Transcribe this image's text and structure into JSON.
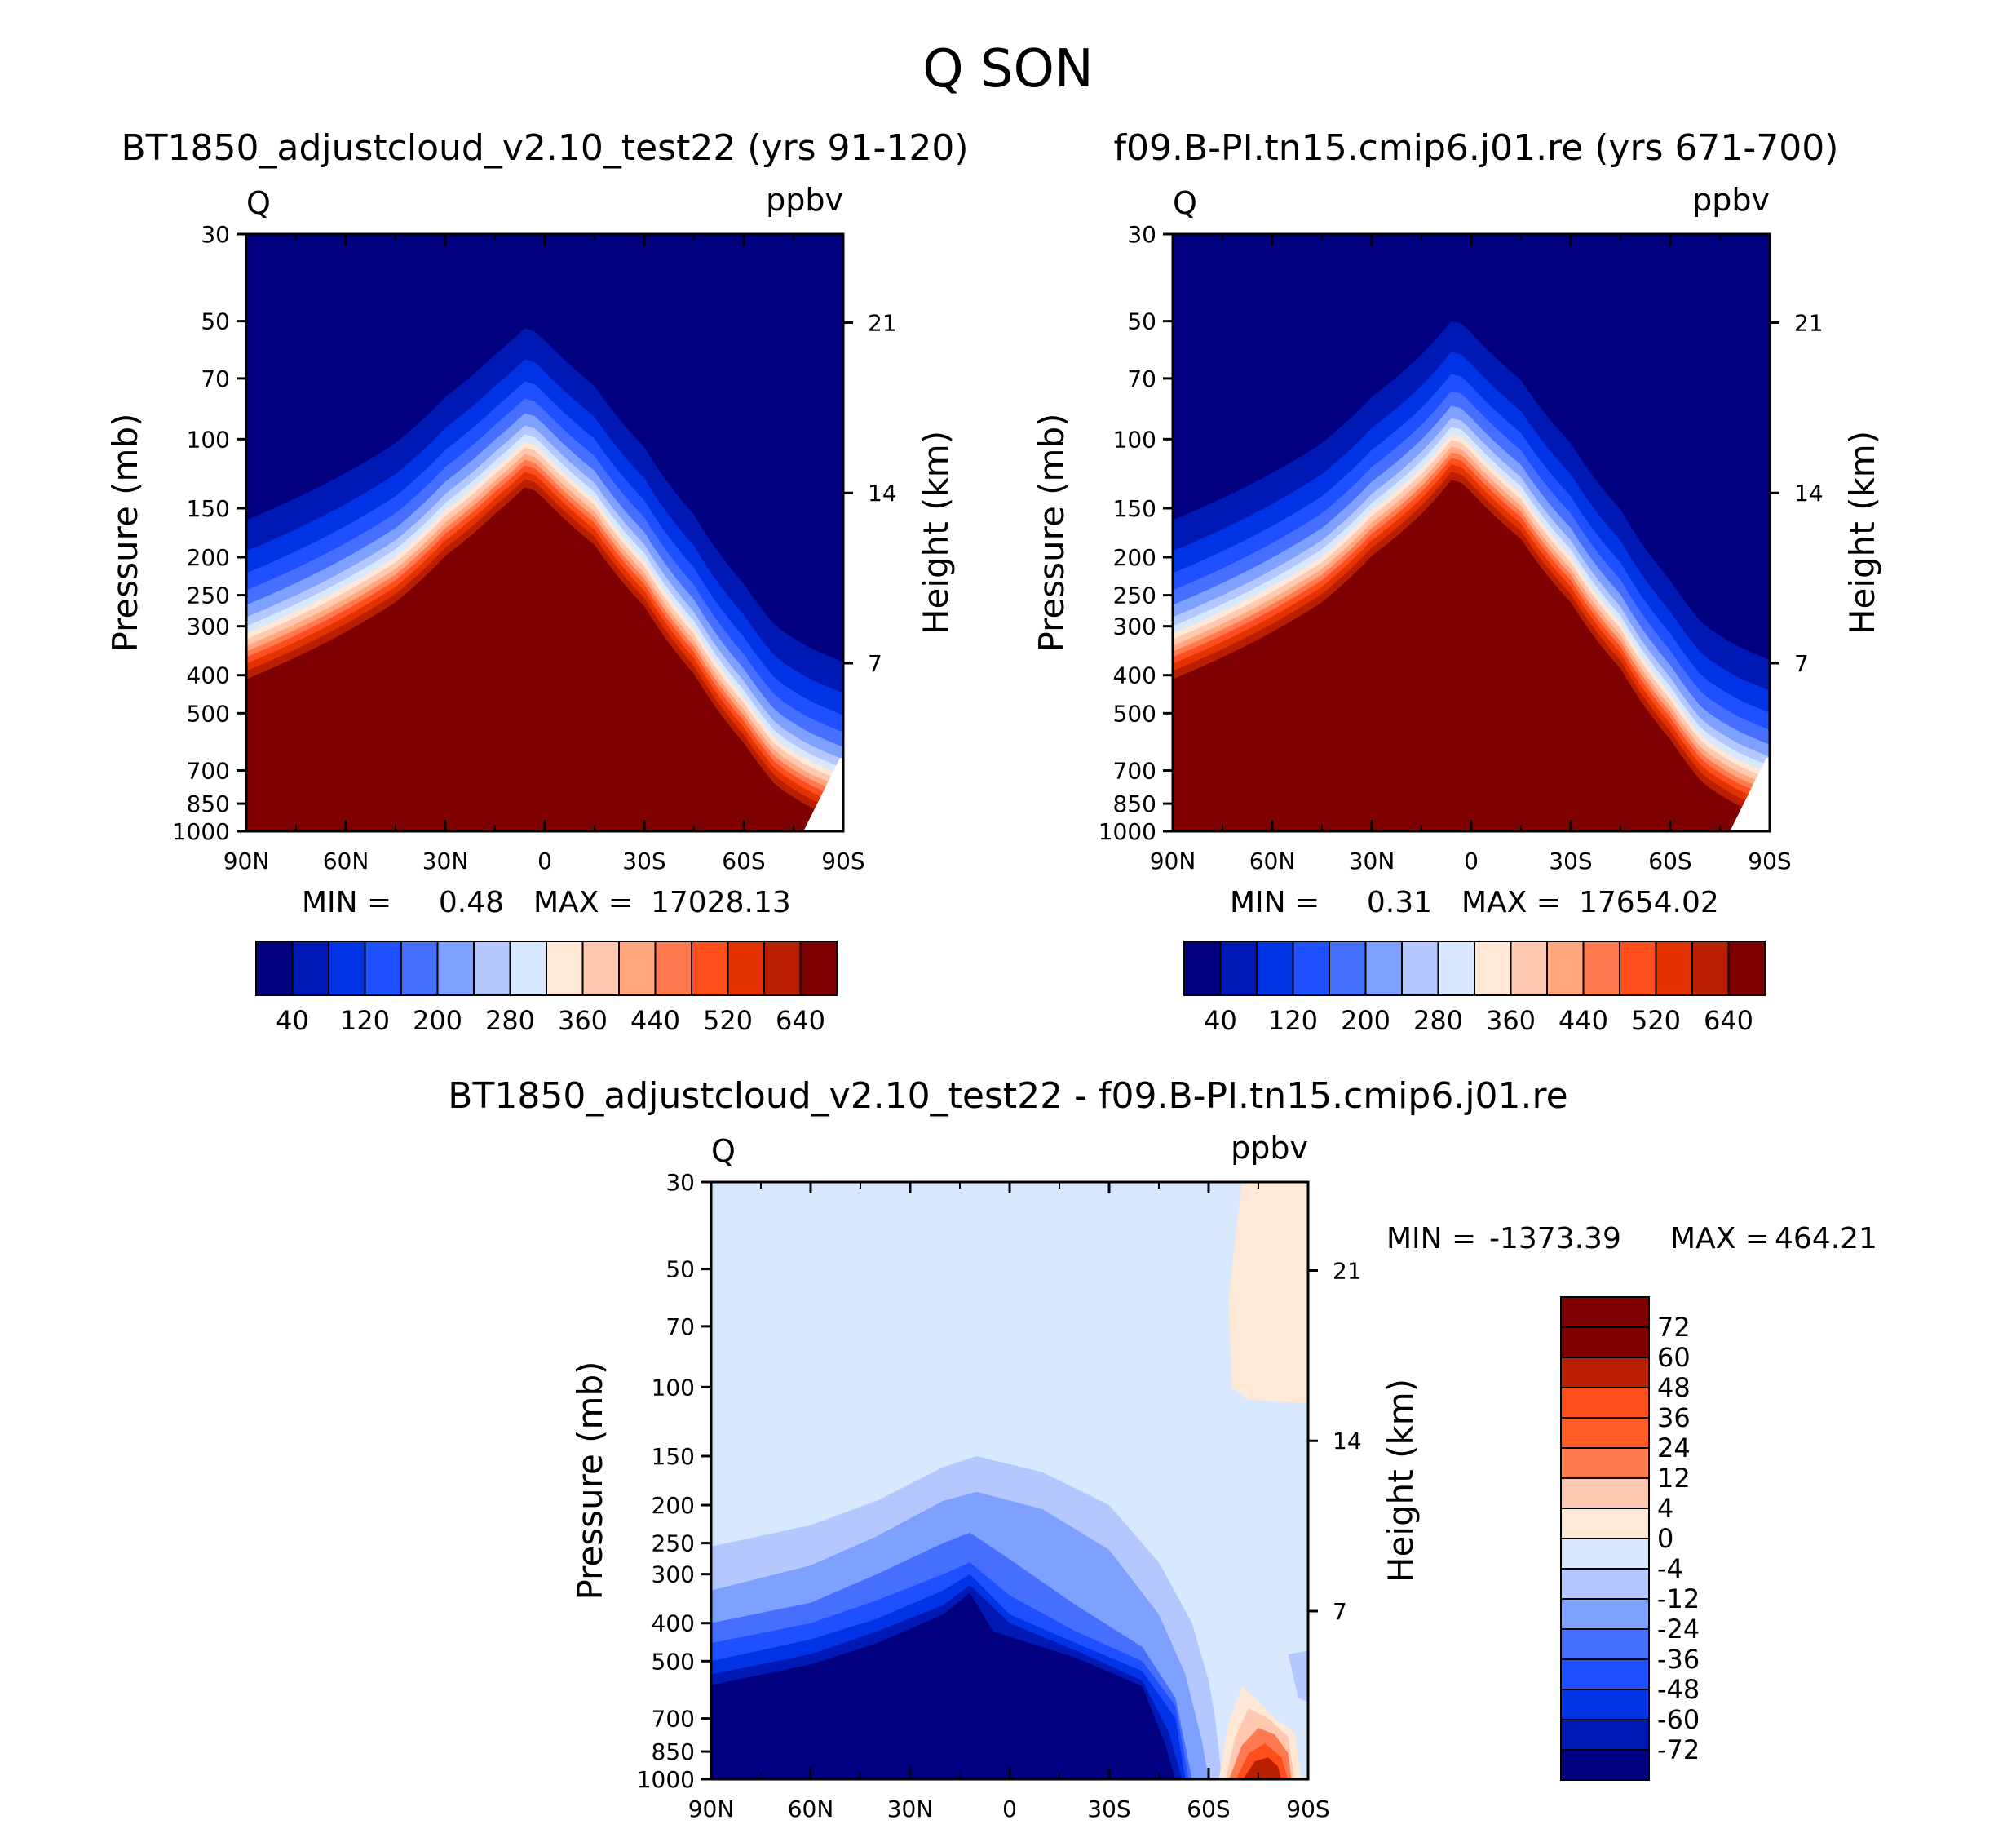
{
  "figure_title": "Q SON",
  "chart_data": [
    {
      "type": "heatmap",
      "id": "left",
      "title": "BT1850_adjustcloud_v2.10_test22 (yrs 91-120)",
      "variable": "Q",
      "units": "ppbv",
      "ylabel": "Pressure (mb)",
      "ylabel_right": "Height (km)",
      "x_ticks": [
        "90N",
        "60N",
        "30N",
        "0",
        "30S",
        "60S",
        "90S"
      ],
      "y_ticks": [
        "30",
        "50",
        "70",
        "100",
        "150",
        "200",
        "250",
        "300",
        "400",
        "500",
        "700",
        "850",
        "1000"
      ],
      "y_ticks_right": [
        "21",
        "14",
        "7"
      ],
      "stats": {
        "min_label": "MIN =",
        "min": "0.48",
        "max_label": "MAX =",
        "max": "17028.13"
      },
      "colorbar_labels": [
        "40",
        "120",
        "200",
        "280",
        "360",
        "440",
        "520",
        "640"
      ],
      "x_data_lat": [
        90,
        75,
        60,
        45,
        30,
        15,
        5,
        0,
        -15,
        -30,
        -45,
        -60,
        -70,
        -80,
        -90
      ],
      "boundary_p": [
        330,
        290,
        250,
        210,
        160,
        125,
        105,
        115,
        150,
        215,
        320,
        480,
        620,
        700,
        760
      ]
    },
    {
      "type": "heatmap",
      "id": "right",
      "title": "f09.B-PI.tn15.cmip6.j01.re (yrs 671-700)",
      "variable": "Q",
      "units": "ppbv",
      "ylabel": "Pressure (mb)",
      "ylabel_right": "Height (km)",
      "x_ticks": [
        "90N",
        "60N",
        "30N",
        "0",
        "30S",
        "60S",
        "90S"
      ],
      "y_ticks": [
        "30",
        "50",
        "70",
        "100",
        "150",
        "200",
        "250",
        "300",
        "400",
        "500",
        "700",
        "850",
        "1000"
      ],
      "y_ticks_right": [
        "21",
        "14",
        "7"
      ],
      "stats": {
        "min_label": "MIN =",
        "min": "0.31",
        "max_label": "MAX =",
        "max": "17654.02"
      },
      "colorbar_labels": [
        "40",
        "120",
        "200",
        "280",
        "360",
        "440",
        "520",
        "640"
      ],
      "x_data_lat": [
        90,
        75,
        60,
        45,
        30,
        15,
        5,
        0,
        -15,
        -30,
        -45,
        -60,
        -70,
        -80,
        -90
      ],
      "boundary_p": [
        330,
        290,
        250,
        210,
        160,
        125,
        100,
        110,
        145,
        210,
        310,
        470,
        610,
        690,
        750
      ]
    },
    {
      "type": "heatmap",
      "id": "diff",
      "title": "BT1850_adjustcloud_v2.10_test22 - f09.B-PI.tn15.cmip6.j01.re",
      "variable": "Q",
      "units": "ppbv",
      "ylabel": "Pressure (mb)",
      "ylabel_right": "Height (km)",
      "x_ticks": [
        "90N",
        "60N",
        "30N",
        "0",
        "30S",
        "60S",
        "90S"
      ],
      "y_ticks": [
        "30",
        "50",
        "70",
        "100",
        "150",
        "200",
        "250",
        "300",
        "400",
        "500",
        "700",
        "850",
        "1000"
      ],
      "y_ticks_right": [
        "21",
        "14",
        "7"
      ],
      "stats": {
        "min_label": "MIN =",
        "min": "-1373.39",
        "max_label": "MAX =",
        "max": "464.21"
      },
      "colorbar_labels": [
        "72",
        "60",
        "48",
        "36",
        "24",
        "12",
        "4",
        "0",
        "-4",
        "-12",
        "-24",
        "-36",
        "-48",
        "-60",
        "-72"
      ]
    }
  ],
  "colors": {
    "seq": [
      "#000080",
      "#0019b4",
      "#0032e6",
      "#1e50ff",
      "#466eff",
      "#7ea0ff",
      "#b4c8ff",
      "#d7e8ff",
      "#ffe8d6",
      "#ffc8b0",
      "#ffa880",
      "#ff7a50",
      "#ff4e1e",
      "#e13200",
      "#b91e00",
      "#7e0000"
    ],
    "diff": [
      "#000080",
      "#0019b4",
      "#0032e6",
      "#1e50ff",
      "#466eff",
      "#7ea0ff",
      "#b4c8ff",
      "#d7e8ff",
      "#ffe8d6",
      "#ffc8b0",
      "#ff7a50",
      "#ff5c28",
      "#ff4e1e",
      "#b91e00",
      "#7e0000"
    ]
  }
}
